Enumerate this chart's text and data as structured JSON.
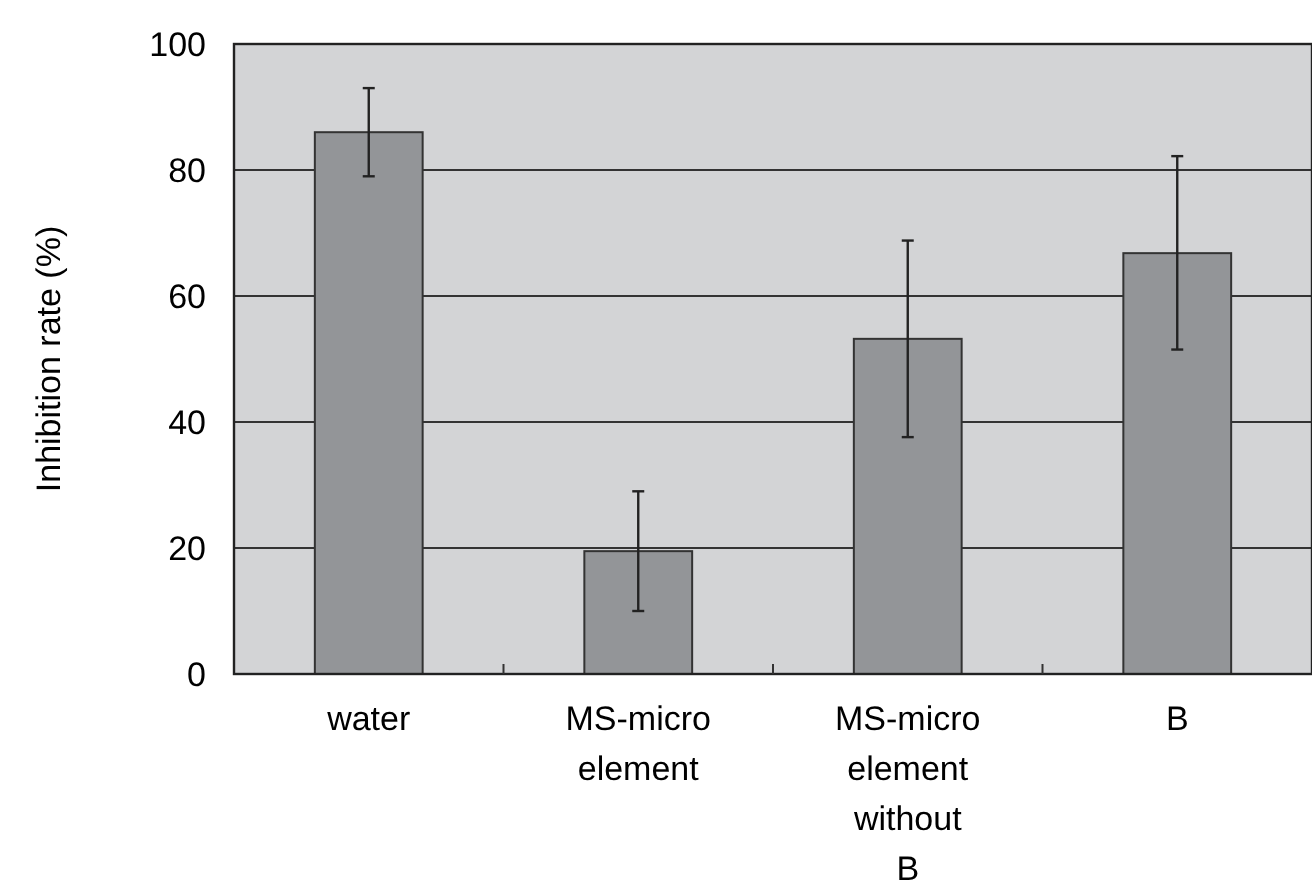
{
  "chart_data": {
    "type": "bar",
    "ylabel": "Inhibition rate (%)",
    "categories": [
      "water",
      "MS-micro element",
      "MS-micro element without B",
      "B"
    ],
    "values": [
      86,
      19.5,
      53.2,
      66.8
    ],
    "errors": [
      [
        79,
        93
      ],
      [
        10,
        29
      ],
      [
        37.6,
        68.8
      ],
      [
        51.5,
        82.2
      ]
    ],
    "color": "#939598",
    "ylim": [
      0,
      100
    ],
    "yticks": [
      0,
      20,
      40,
      60,
      80,
      100
    ],
    "grid": "y"
  }
}
